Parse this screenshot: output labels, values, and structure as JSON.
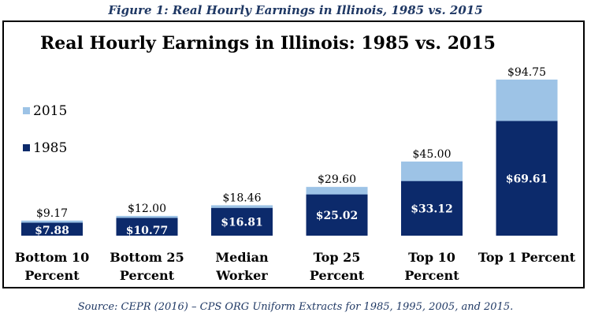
{
  "figure_caption": "Figure 1: Real Hourly Earnings in Illinois, 1985 vs. 2015",
  "source": "Source: CEPR (2016) – CPS ORG Uniform Extracts for 1985, 1995, 2005, and 2015.",
  "colors": {
    "s1985": "#0c2a6b",
    "s2015": "#9dc3e6"
  },
  "chart_data": {
    "type": "bar",
    "title": "Real Hourly Earnings in Illinois: 1985 vs. 2015",
    "categories": [
      [
        "Bottom 10",
        "Percent"
      ],
      [
        "Bottom 25",
        "Percent"
      ],
      [
        "Median",
        "Worker"
      ],
      [
        "Top 25",
        "Percent"
      ],
      [
        "Top 10",
        "Percent"
      ],
      [
        "Top 1 Percent"
      ]
    ],
    "series": [
      {
        "name": "1985",
        "values": [
          7.88,
          10.77,
          16.81,
          25.02,
          33.12,
          69.61
        ],
        "labels": [
          "$7.88",
          "$10.77",
          "$16.81",
          "$25.02",
          "$33.12",
          "$69.61"
        ]
      },
      {
        "name": "2015",
        "values": [
          9.17,
          12.0,
          18.46,
          29.6,
          45.0,
          94.75
        ],
        "labels": [
          "$9.17",
          "$12.00",
          "$18.46",
          "$29.60",
          "$45.00",
          "$94.75"
        ]
      }
    ],
    "legend": [
      "2015",
      "1985"
    ],
    "legend_position": "left",
    "ylim": [
      0,
      100
    ],
    "xlabel": "",
    "ylabel": ""
  }
}
